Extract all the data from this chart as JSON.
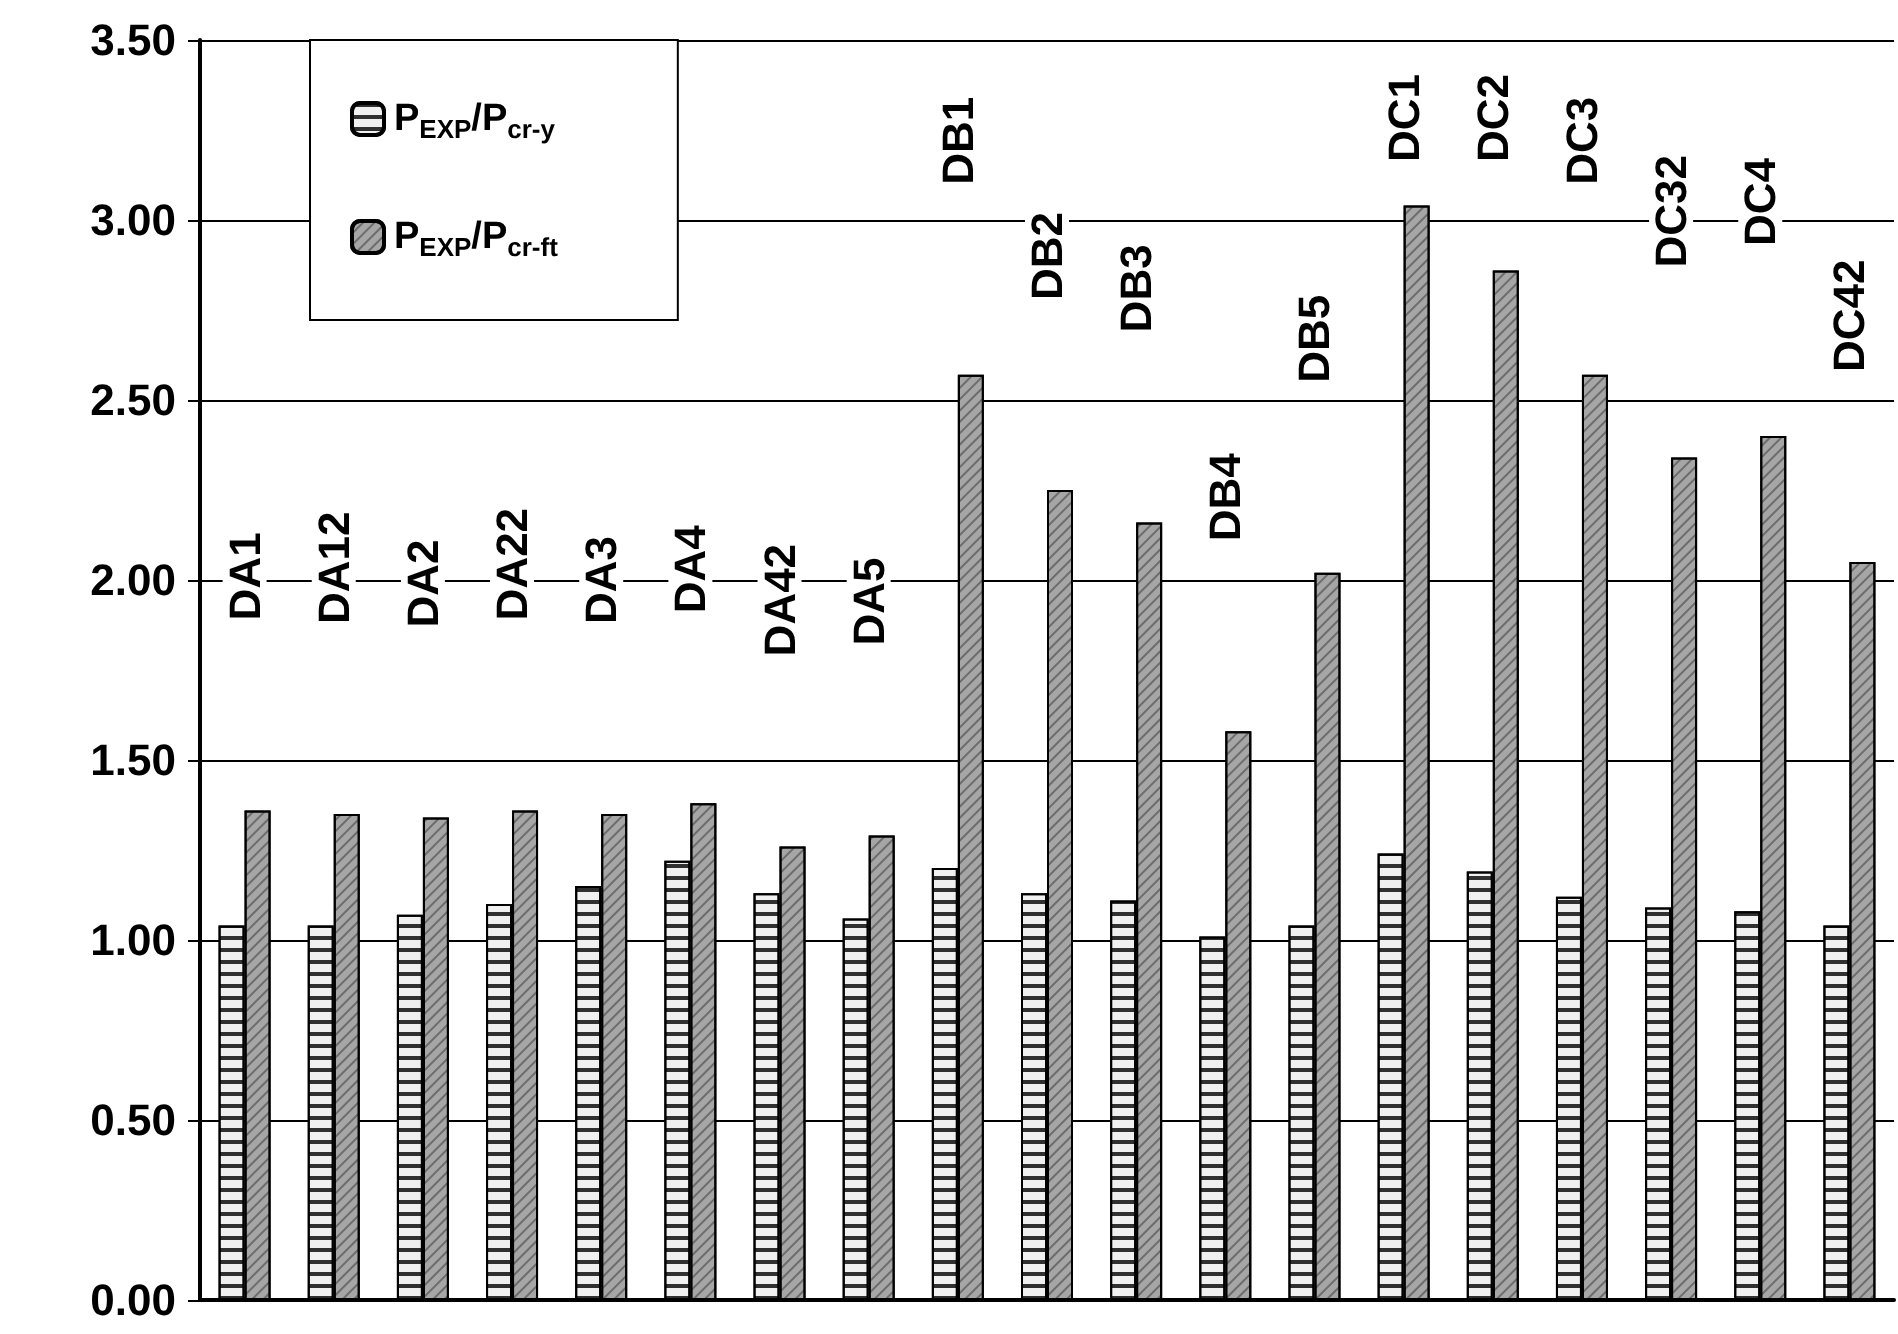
{
  "chart_data": {
    "type": "bar",
    "categories": [
      "DA1",
      "DA12",
      "DA2",
      "DA22",
      "DA3",
      "DA4",
      "DA42",
      "DA5",
      "DB1",
      "DB2",
      "DB3",
      "DB4",
      "DB5",
      "DC1",
      "DC2",
      "DC3",
      "DC32",
      "DC4",
      "DC42"
    ],
    "series": [
      {
        "name": "P$_{EXP}$/P$_{cr-y}$",
        "color": "#f0f0f0",
        "values": [
          1.04,
          1.04,
          1.07,
          1.1,
          1.15,
          1.22,
          1.13,
          1.06,
          1.2,
          1.13,
          1.11,
          1.01,
          1.04,
          1.24,
          1.19,
          1.12,
          1.09,
          1.08,
          1.04
        ]
      },
      {
        "name": "P$_{EXP}$/P$_{cr-ft}$",
        "color": "#a6a6a6",
        "values": [
          1.36,
          1.35,
          1.34,
          1.36,
          1.35,
          1.38,
          1.26,
          1.29,
          2.57,
          2.25,
          2.16,
          1.58,
          2.02,
          3.04,
          2.86,
          2.57,
          2.34,
          2.4,
          2.05
        ]
      }
    ],
    "ylim": [
      0,
      3.5
    ],
    "yticks": [
      {
        "value": 0,
        "label": "0.00"
      },
      {
        "value": 0.5,
        "label": "0.50"
      },
      {
        "value": 1,
        "label": "1.00"
      },
      {
        "value": 1.5,
        "label": "1.50"
      },
      {
        "value": 2,
        "label": "2.00"
      },
      {
        "value": 2.5,
        "label": "2.50"
      },
      {
        "value": 3,
        "label": "3.00"
      },
      {
        "value": 3.5,
        "label": "3.50"
      }
    ],
    "grid": "y",
    "legend": "top left"
  }
}
